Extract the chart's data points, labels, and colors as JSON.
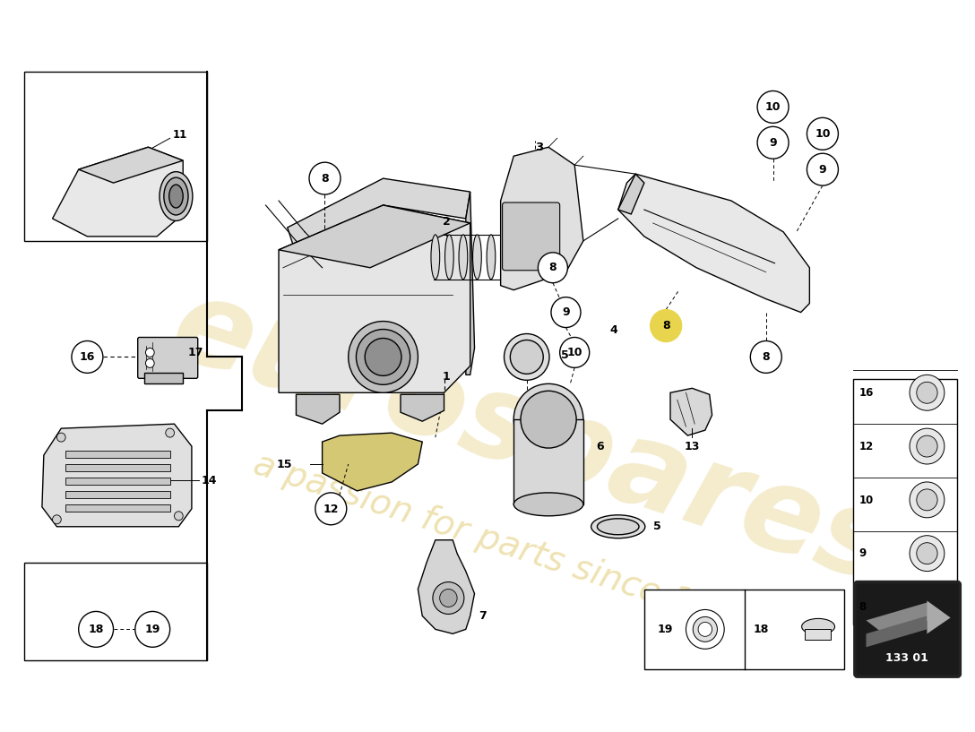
{
  "background_color": "#ffffff",
  "line_color": "#000000",
  "watermark_text": "eurospares",
  "watermark_subtext": "a passion for parts since 1985",
  "watermark_color": "#c8a000",
  "diagram_number": "133 01",
  "fig_width": 11.0,
  "fig_height": 8.0,
  "dpi": 100
}
